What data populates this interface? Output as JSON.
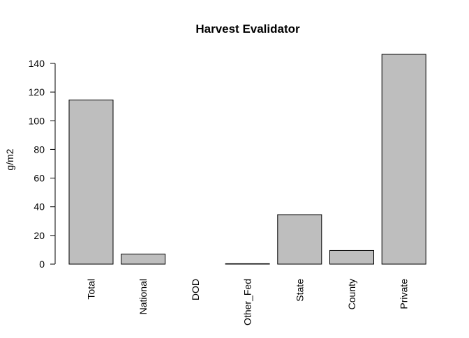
{
  "chart_data": {
    "type": "bar",
    "title": "Harvest Evalidator",
    "xlabel": "",
    "ylabel": "g/m2",
    "categories": [
      "Total",
      "National",
      "DOD",
      "Other_Fed",
      "State",
      "County",
      "Private"
    ],
    "values": [
      114.5,
      7.0,
      0.0,
      0.3,
      34.5,
      9.5,
      146.3
    ],
    "yticks": [
      0,
      20,
      40,
      60,
      80,
      100,
      120,
      140
    ],
    "ylim": [
      0,
      146.3
    ],
    "bar_color": "#bebebe",
    "grid": false,
    "legend": "none"
  }
}
